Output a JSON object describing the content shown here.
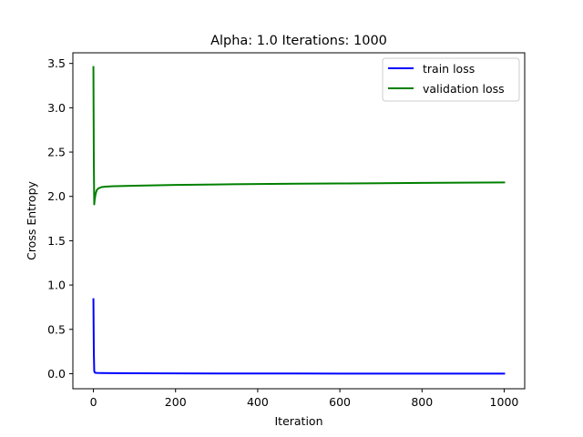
{
  "chart_data": {
    "type": "line",
    "title": "Alpha: 1.0 Iterations: 1000",
    "xlabel": "Iteration",
    "ylabel": "Cross Entropy",
    "xlim": [
      -50,
      1050
    ],
    "ylim": [
      -0.17,
      3.62
    ],
    "xticks": [
      0,
      200,
      400,
      600,
      800,
      1000
    ],
    "yticks": [
      0.0,
      0.5,
      1.0,
      1.5,
      2.0,
      2.5,
      3.0,
      3.5
    ],
    "xtick_labels": [
      "0",
      "200",
      "400",
      "600",
      "800",
      "1000"
    ],
    "ytick_labels": [
      "0.0",
      "0.5",
      "1.0",
      "1.5",
      "2.0",
      "2.5",
      "3.0",
      "3.5"
    ],
    "grid": false,
    "legend_position": "upper right",
    "series": [
      {
        "name": "train loss",
        "color": "#0000ff",
        "x": [
          0,
          1,
          2,
          3,
          5,
          10,
          20,
          50,
          100,
          200,
          300,
          400,
          500,
          600,
          700,
          800,
          900,
          1000
        ],
        "y": [
          0.84,
          0.25,
          0.03,
          0.015,
          0.01,
          0.008,
          0.007,
          0.006,
          0.005,
          0.003,
          0.002,
          0.002,
          0.002,
          0.001,
          0.001,
          0.001,
          0.001,
          0.001
        ]
      },
      {
        "name": "validation loss",
        "color": "#008000",
        "x": [
          0,
          1,
          2,
          3,
          5,
          8,
          12,
          20,
          30,
          50,
          100,
          200,
          300,
          400,
          500,
          600,
          700,
          800,
          900,
          1000
        ],
        "y": [
          3.46,
          2.4,
          1.91,
          1.96,
          2.02,
          2.07,
          2.09,
          2.105,
          2.11,
          2.115,
          2.12,
          2.13,
          2.135,
          2.14,
          2.143,
          2.146,
          2.149,
          2.152,
          2.155,
          2.158
        ]
      }
    ]
  }
}
